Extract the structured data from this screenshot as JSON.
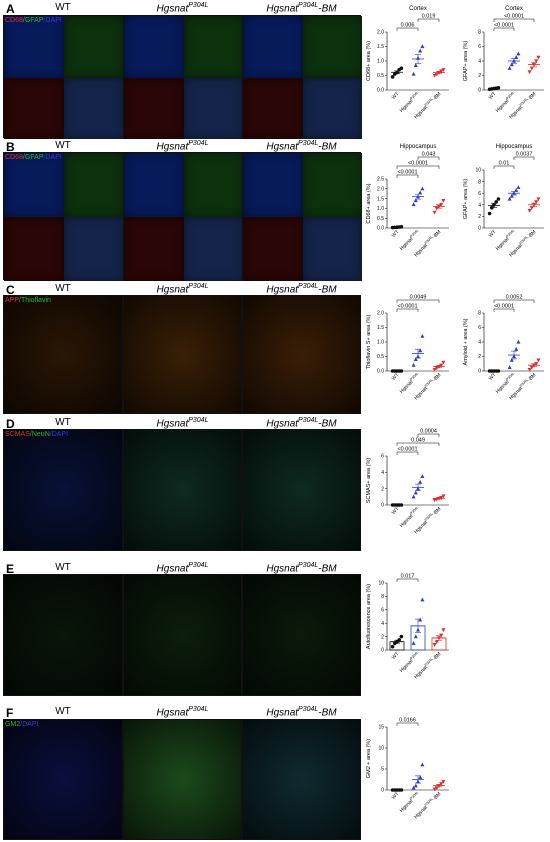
{
  "sections": [
    {
      "letter": "A",
      "stain_parts": [
        {
          "text": "CD68",
          "color": "#e0302f"
        },
        {
          "text": "/GFAP",
          "color": "#2db82d"
        },
        {
          "text": "/DAPI",
          "color": "#3a3ad6"
        }
      ],
      "col_titles": [
        "WT",
        "Hgsnat^P304L",
        "Hgsnat^P304L-BM"
      ]
    },
    {
      "letter": "B",
      "stain_parts": [
        {
          "text": "CD68",
          "color": "#e0302f"
        },
        {
          "text": "/GFAP",
          "color": "#2db82d"
        },
        {
          "text": "/DAPI",
          "color": "#3a3ad6"
        }
      ],
      "col_titles": [
        "WT",
        "Hgsnat^P304L",
        "Hgsnat^P304L-BM"
      ]
    },
    {
      "letter": "C",
      "stain_parts": [
        {
          "text": "APP",
          "color": "#e0302f"
        },
        {
          "text": "/Thioflavin",
          "color": "#2db82d"
        }
      ],
      "col_titles": [
        "WT",
        "Hgsnat^P304L",
        "Hgsnat^P304L-BM"
      ]
    },
    {
      "letter": "D",
      "stain_parts": [
        {
          "text": "SCMAS",
          "color": "#e0302f"
        },
        {
          "text": "/NeuN",
          "color": "#2db82d"
        },
        {
          "text": "/DAPI",
          "color": "#3a3ad6"
        }
      ],
      "col_titles": [
        "WT",
        "Hgsnat^P304L",
        "Hgsnat^P304L-BM"
      ]
    },
    {
      "letter": "E",
      "stain_parts": [],
      "col_titles": [
        "WT",
        "Hgsnat^P304L",
        "Hgsnat^P304L-BM"
      ]
    },
    {
      "letter": "F",
      "stain_parts": [
        {
          "text": "GM2",
          "color": "#2db82d"
        },
        {
          "text": "/DAPI",
          "color": "#3a3ad6"
        }
      ],
      "col_titles": [
        "WT",
        "Hgsnat^P304L",
        "Hgsnat^P304L-BM"
      ]
    }
  ],
  "xcats": [
    "WT",
    "Hgsnat^P304L",
    "Hgsnat^P304L-BM"
  ],
  "chart_data": [
    {
      "id": "A-cd68",
      "type": "scatter",
      "title": "Cortex",
      "ylabel": "CD68+ area (%)",
      "ylim": [
        0,
        2.0
      ],
      "yticks": [
        "0.0",
        "0.5",
        "1.0",
        "1.5",
        "2.0"
      ],
      "groups": [
        {
          "name": "WT",
          "color": "#111111",
          "shape": "circle",
          "values": [
            0.45,
            0.55,
            0.6,
            0.7,
            0.75
          ]
        },
        {
          "name": "Hgsnat^P304L",
          "color": "#2b3fc9",
          "shape": "triangle",
          "values": [
            0.55,
            0.85,
            1.1,
            1.35,
            1.5
          ]
        },
        {
          "name": "Hgsnat^P304L-BM",
          "color": "#e12b2b",
          "shape": "triangle-down",
          "values": [
            0.5,
            0.55,
            0.6,
            0.65,
            0.7
          ]
        }
      ],
      "pvalues": [
        {
          "from": 0,
          "to": 1,
          "label": "0.006",
          "level": 0
        },
        {
          "from": 1,
          "to": 2,
          "label": "0.019",
          "level": 1
        }
      ]
    },
    {
      "id": "A-gfap",
      "type": "scatter",
      "title": "Cortex",
      "ylabel": "GFAP+ area (%)",
      "ylim": [
        0,
        8
      ],
      "yticks": [
        "0",
        "2",
        "4",
        "6",
        "8"
      ],
      "groups": [
        {
          "name": "WT",
          "color": "#111111",
          "shape": "circle",
          "values": [
            0.1,
            0.15,
            0.2,
            0.25,
            0.3
          ]
        },
        {
          "name": "Hgsnat^P304L",
          "color": "#2b3fc9",
          "shape": "triangle",
          "values": [
            3.0,
            3.5,
            4.0,
            4.5,
            5.0
          ]
        },
        {
          "name": "Hgsnat^P304L-BM",
          "color": "#e12b2b",
          "shape": "triangle-down",
          "values": [
            2.5,
            3.0,
            3.5,
            4.0,
            4.5
          ]
        }
      ],
      "pvalues": [
        {
          "from": 0,
          "to": 1,
          "label": "<0.0001",
          "level": 0
        },
        {
          "from": 0,
          "to": 2,
          "label": "<0.0001",
          "level": 1
        }
      ]
    },
    {
      "id": "B-cd68",
      "type": "scatter",
      "title": "Hippocampus",
      "ylabel": "CD68+ area (%)",
      "ylim": [
        0,
        2.5
      ],
      "yticks": [
        "0.0",
        "0.5",
        "1.0",
        "1.5",
        "2.0",
        "2.5"
      ],
      "groups": [
        {
          "name": "WT",
          "color": "#111111",
          "shape": "circle",
          "values": [
            0.02,
            0.03,
            0.04,
            0.05,
            0.06
          ]
        },
        {
          "name": "Hgsnat^P304L",
          "color": "#2b3fc9",
          "shape": "triangle",
          "values": [
            1.2,
            1.4,
            1.6,
            1.8,
            2.0
          ]
        },
        {
          "name": "Hgsnat^P304L-BM",
          "color": "#e12b2b",
          "shape": "triangle-down",
          "values": [
            0.8,
            1.0,
            1.1,
            1.2,
            1.4
          ]
        }
      ],
      "pvalues": [
        {
          "from": 0,
          "to": 1,
          "label": "<0.0001",
          "level": 0
        },
        {
          "from": 0,
          "to": 2,
          "label": "<0.0001",
          "level": 1
        },
        {
          "from": 1,
          "to": 2,
          "label": "0.043",
          "level": 2
        }
      ]
    },
    {
      "id": "B-gfap",
      "type": "scatter",
      "title": "Hippocampus",
      "ylabel": "GFAP+ area (%)",
      "ylim": [
        0,
        10
      ],
      "yticks": [
        "0",
        "2",
        "4",
        "6",
        "8",
        "10"
      ],
      "groups": [
        {
          "name": "WT",
          "color": "#111111",
          "shape": "circle",
          "values": [
            2.5,
            3.5,
            4.0,
            4.5,
            5.0
          ]
        },
        {
          "name": "Hgsnat^P304L",
          "color": "#2b3fc9",
          "shape": "triangle",
          "values": [
            5.0,
            5.5,
            6.0,
            6.5,
            7.0
          ]
        },
        {
          "name": "Hgsnat^P304L-BM",
          "color": "#e12b2b",
          "shape": "triangle-down",
          "values": [
            3.0,
            3.5,
            4.0,
            4.5,
            5.0
          ]
        }
      ],
      "pvalues": [
        {
          "from": 0,
          "to": 1,
          "label": "0.01",
          "level": 0
        },
        {
          "from": 1,
          "to": 2,
          "label": "0.0037",
          "level": 1
        }
      ]
    },
    {
      "id": "C-thio",
      "type": "scatter",
      "title": "",
      "ylabel": "Thioflavin S+ area (%)",
      "ylim": [
        0,
        2.0
      ],
      "yticks": [
        "0.0",
        "0.5",
        "1.0",
        "1.5",
        "2.0"
      ],
      "groups": [
        {
          "name": "WT",
          "color": "#111111",
          "shape": "circle",
          "values": [
            0,
            0,
            0,
            0,
            0
          ]
        },
        {
          "name": "Hgsnat^P304L",
          "color": "#2b3fc9",
          "shape": "triangle",
          "values": [
            0.2,
            0.4,
            0.5,
            0.7,
            1.2
          ]
        },
        {
          "name": "Hgsnat^P304L-BM",
          "color": "#e12b2b",
          "shape": "triangle-down",
          "values": [
            0.05,
            0.1,
            0.15,
            0.2,
            0.3
          ]
        }
      ],
      "pvalues": [
        {
          "from": 0,
          "to": 1,
          "label": "<0.0001",
          "level": 0
        },
        {
          "from": 0,
          "to": 2,
          "label": "0.0049",
          "level": 1
        }
      ]
    },
    {
      "id": "C-amy",
      "type": "scatter",
      "title": "",
      "ylabel": "Amyloid + area (%)",
      "ylim": [
        0,
        8
      ],
      "yticks": [
        "0",
        "2",
        "4",
        "6",
        "8"
      ],
      "groups": [
        {
          "name": "WT",
          "color": "#111111",
          "shape": "circle",
          "values": [
            0,
            0,
            0,
            0,
            0
          ]
        },
        {
          "name": "Hgsnat^P304L",
          "color": "#2b3fc9",
          "shape": "triangle",
          "values": [
            0.5,
            1.5,
            2.0,
            3.0,
            4.0
          ]
        },
        {
          "name": "Hgsnat^P304L-BM",
          "color": "#e12b2b",
          "shape": "triangle-down",
          "values": [
            0.2,
            0.5,
            0.8,
            1.0,
            1.5
          ]
        }
      ],
      "pvalues": [
        {
          "from": 0,
          "to": 1,
          "label": "<0.0001",
          "level": 0
        },
        {
          "from": 0,
          "to": 2,
          "label": "0.0052",
          "level": 1
        }
      ]
    },
    {
      "id": "D-scmas",
      "type": "scatter",
      "title": "",
      "ylabel": "SCMAS+ area (%)",
      "ylim": [
        0,
        6
      ],
      "yticks": [
        "0",
        "2",
        "4",
        "6"
      ],
      "groups": [
        {
          "name": "WT",
          "color": "#111111",
          "shape": "circle",
          "values": [
            0,
            0,
            0,
            0,
            0
          ]
        },
        {
          "name": "Hgsnat^P304L",
          "color": "#2b3fc9",
          "shape": "triangle",
          "values": [
            1.0,
            1.5,
            2.0,
            2.8,
            3.5
          ]
        },
        {
          "name": "Hgsnat^P304L-BM",
          "color": "#e12b2b",
          "shape": "triangle-down",
          "values": [
            0.6,
            0.7,
            0.8,
            0.9,
            1.1
          ]
        }
      ],
      "pvalues": [
        {
          "from": 0,
          "to": 1,
          "label": "<0.0001",
          "level": 0
        },
        {
          "from": 0,
          "to": 2,
          "label": "0.049",
          "level": 1
        },
        {
          "from": 1,
          "to": 2,
          "label": "0.0004",
          "level": 2
        }
      ]
    },
    {
      "id": "E-auto",
      "type": "bar",
      "title": "",
      "ylabel": "Autofluorescence area (%)",
      "ylim": [
        0,
        10
      ],
      "yticks": [
        "0",
        "2",
        "4",
        "6",
        "8",
        "10"
      ],
      "groups": [
        {
          "name": "WT",
          "color": "#111111",
          "shape": "circle",
          "values": [
            0.5,
            1.0,
            1.2,
            1.5,
            2.0
          ]
        },
        {
          "name": "Hgsnat^P304L",
          "color": "#2b3fc9",
          "shape": "triangle",
          "values": [
            1.0,
            2.0,
            3.0,
            4.5,
            7.5
          ]
        },
        {
          "name": "Hgsnat^P304L-BM",
          "color": "#e12b2b",
          "shape": "triangle-down",
          "values": [
            0.8,
            1.2,
            1.8,
            2.2,
            3.0
          ]
        }
      ],
      "pvalues": [
        {
          "from": 0,
          "to": 1,
          "label": "0.017",
          "level": 0
        }
      ]
    },
    {
      "id": "F-gm2",
      "type": "scatter",
      "title": "",
      "ylabel": "GM2 + area (%)",
      "ylim": [
        0,
        15
      ],
      "yticks": [
        "0",
        "5",
        "10",
        "15"
      ],
      "groups": [
        {
          "name": "WT",
          "color": "#111111",
          "shape": "circle",
          "values": [
            0,
            0,
            0,
            0,
            0
          ]
        },
        {
          "name": "Hgsnat^P304L",
          "color": "#2b3fc9",
          "shape": "triangle",
          "values": [
            0.5,
            1.0,
            2.0,
            3.0,
            6.0
          ]
        },
        {
          "name": "Hgsnat^P304L-BM",
          "color": "#e12b2b",
          "shape": "triangle-down",
          "values": [
            0.2,
            0.5,
            1.0,
            1.5,
            2.0
          ]
        }
      ],
      "pvalues": [
        {
          "from": 0,
          "to": 1,
          "label": "0.0166",
          "level": 0
        }
      ]
    }
  ]
}
